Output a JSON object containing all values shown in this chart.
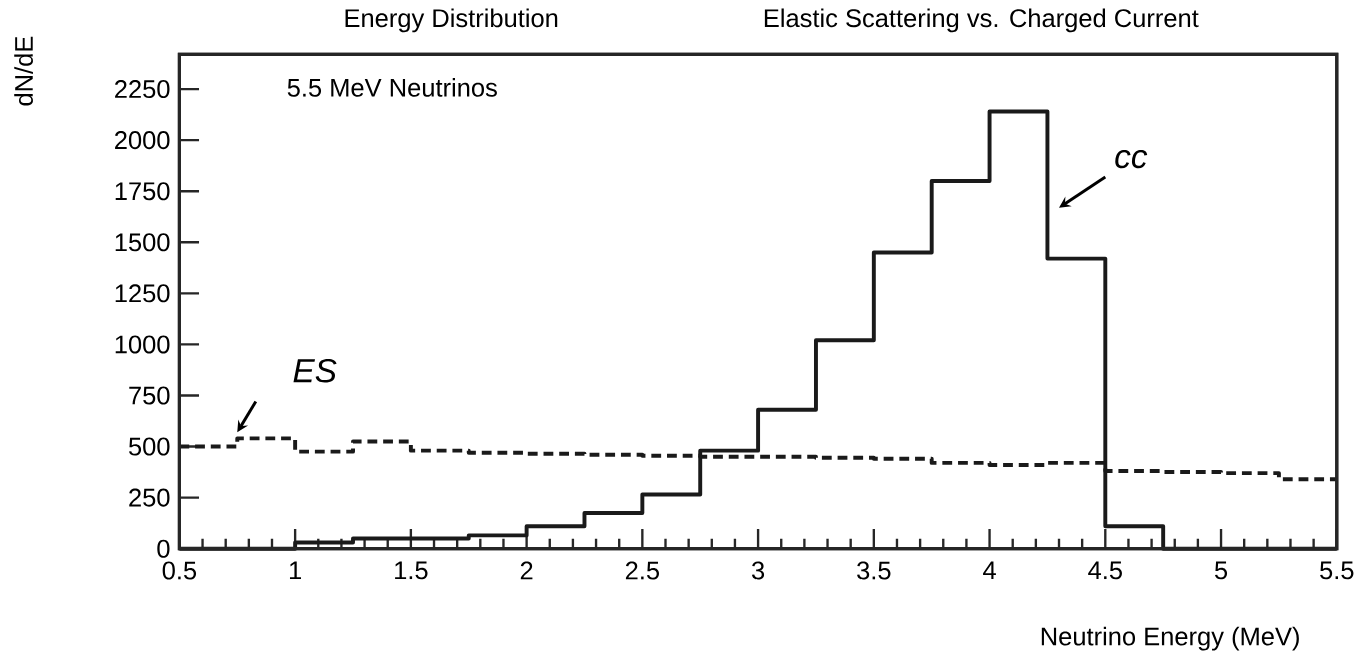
{
  "chart_data": {
    "type": "step",
    "title": "Energy Distribution",
    "subtitle": "Elastic Scattering vs. Charged Current",
    "xlabel": "Neutrino Energy (MeV)",
    "ylabel": "dN/dE",
    "annotations": [
      "5.5 MeV Neutrinos"
    ],
    "x": [
      0.5,
      0.75,
      1,
      1.25,
      1.5,
      1.75,
      2,
      2.25,
      2.5,
      2.75,
      3,
      3.25,
      3.5,
      3.75,
      4,
      4.25,
      4.5,
      4.75,
      5,
      5.25,
      5.5
    ],
    "series": [
      {
        "name": "cc",
        "color": "#1a1a1a",
        "line_style": "solid",
        "values": [
          0,
          0,
          30,
          50,
          50,
          65,
          110,
          175,
          265,
          480,
          680,
          1020,
          1450,
          1800,
          2140,
          1420,
          110,
          0,
          0,
          0,
          0
        ]
      },
      {
        "name": "ES",
        "color": "#1a1a1a",
        "line_style": "dashed",
        "values": [
          500,
          540,
          475,
          525,
          480,
          470,
          465,
          460,
          455,
          450,
          450,
          445,
          440,
          420,
          410,
          420,
          380,
          375,
          370,
          340,
          340
        ]
      }
    ],
    "xlim": [
      0.5,
      5.5
    ],
    "ylim": [
      0,
      2420
    ],
    "xticks": [
      0.5,
      1,
      1.5,
      2,
      2.5,
      3,
      3.5,
      4,
      4.5,
      5,
      5.5
    ],
    "yticks": [
      0,
      250,
      500,
      750,
      1000,
      1250,
      1500,
      1750,
      2000,
      2250
    ],
    "grid": false
  }
}
